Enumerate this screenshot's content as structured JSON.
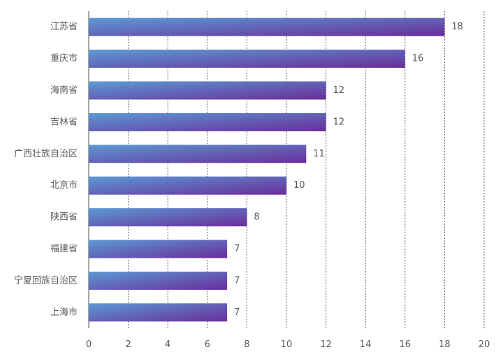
{
  "chart_data": {
    "type": "bar",
    "orientation": "horizontal",
    "categories": [
      "江苏省",
      "重庆市",
      "海南省",
      "吉林省",
      "广西壮族自治区",
      "北京市",
      "陕西省",
      "福建省",
      "宁夏回族自治区",
      "上海市"
    ],
    "values": [
      18,
      16,
      12,
      12,
      11,
      10,
      8,
      7,
      7,
      7
    ],
    "xlim": [
      0,
      20
    ],
    "xticks": [
      0,
      2,
      4,
      6,
      8,
      10,
      12,
      14,
      16,
      18,
      20
    ],
    "grid": "vertical dotted",
    "legend": "none",
    "title": "",
    "xlabel": "",
    "ylabel": "",
    "colors": {
      "bar_start": "#5b9bd5",
      "bar_end": "#6a2c9a",
      "text": "#5a5a5a",
      "grid": "#6b6b6b"
    }
  }
}
